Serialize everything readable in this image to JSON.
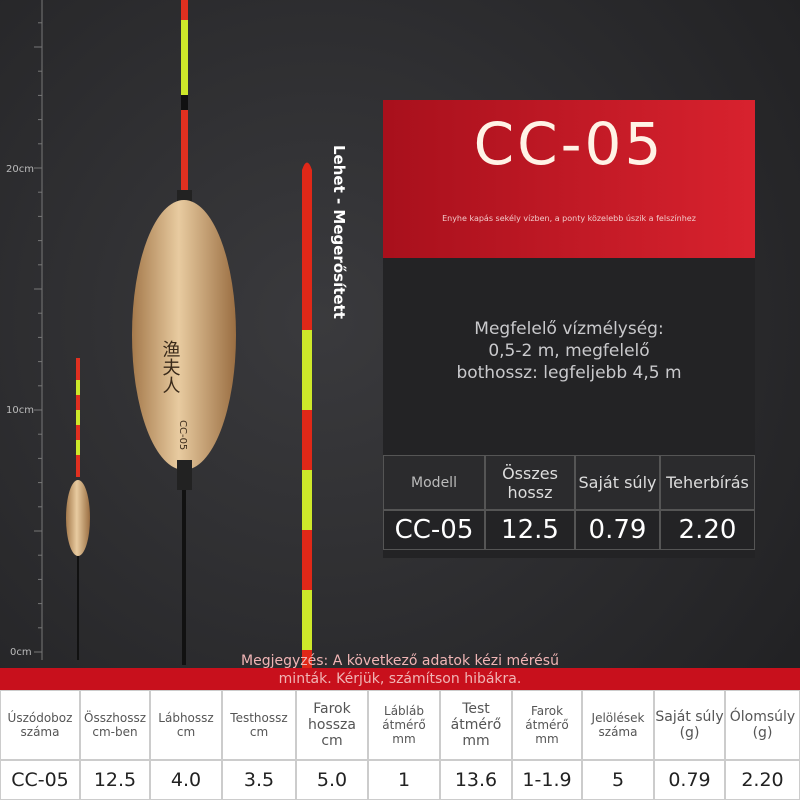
{
  "ruler": {
    "labels": [
      "20cm",
      "10cm",
      "0cm"
    ]
  },
  "side_text": "Lehet - Megerősített",
  "float_label": "CC-05",
  "header": {
    "title": "CC-05",
    "subtitle": "Enyhe kapás sekély vízben, a ponty közelebb úszik a felszínhez"
  },
  "description": [
    "Megfelelő vízmélység:",
    "0,5-2 m, megfelelő",
    "bothossz: legfeljebb 4,5 m"
  ],
  "spec_table": {
    "headers": [
      "Modell",
      "Összes hossz",
      "Saját súly",
      "Teherbírás"
    ],
    "row": [
      "CC-05",
      "12.5",
      "0.79",
      "2.20"
    ]
  },
  "note": [
    "Megjegyzés: A következő adatok kézi mérésű",
    "minták. Kérjük, számítson hibákra."
  ],
  "bottom_table": {
    "headers": [
      "Úszódoboz száma",
      "Összhossz cm-ben",
      "Lábhossz cm",
      "Testhossz cm",
      "Farok hossza cm",
      "Lábláb átmérő mm",
      "Test átmérő mm",
      "Farok átmérő mm",
      "Jelölések száma",
      "Saját súly (g)",
      "Ólomsúly (g)"
    ],
    "row": [
      "CC-05",
      "12.5",
      "4.0",
      "3.5",
      "5.0",
      "1",
      "13.6",
      "1-1.9",
      "5",
      "0.79",
      "2.20"
    ]
  }
}
